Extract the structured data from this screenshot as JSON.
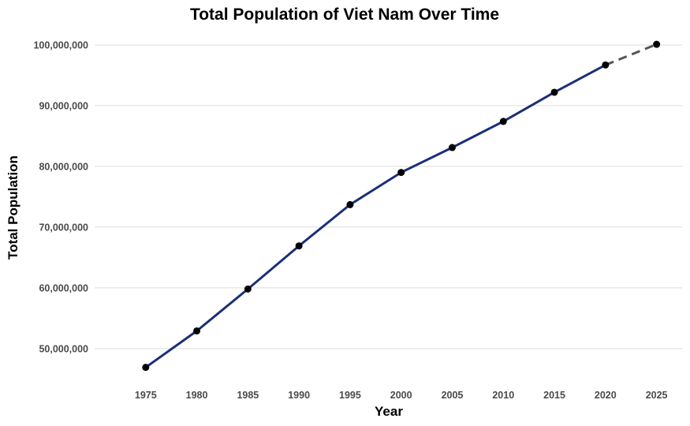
{
  "chart_data": {
    "type": "line",
    "title": "Total Population of Viet Nam Over Time",
    "xlabel": "Year",
    "ylabel": "Total Population",
    "x": [
      1975,
      1980,
      1985,
      1990,
      1995,
      2000,
      2005,
      2010,
      2015,
      2020,
      2025
    ],
    "x_tick_labels": [
      "1975",
      "1980",
      "1985",
      "1990",
      "1995",
      "2000",
      "2005",
      "2010",
      "2015",
      "2020",
      "2025"
    ],
    "y_ticks": [
      50000000,
      60000000,
      70000000,
      80000000,
      90000000,
      100000000
    ],
    "y_tick_labels": [
      "50,000,000",
      "60,000,000",
      "70,000,000",
      "80,000,000",
      "90,000,000",
      "100,000,000"
    ],
    "xlim": [
      1970,
      2027.5
    ],
    "ylim": [
      44000000,
      103500000
    ],
    "grid": "horizontal",
    "series": [
      {
        "values": [
          46900000,
          52900000,
          59800000,
          66900000,
          73700000,
          79000000,
          83100000,
          87400000,
          92200000,
          96700000,
          100100000
        ],
        "color": "#1a2f78",
        "projection_from_index": 9,
        "projection_color": "#555555",
        "marker_color": "#000000"
      }
    ]
  }
}
